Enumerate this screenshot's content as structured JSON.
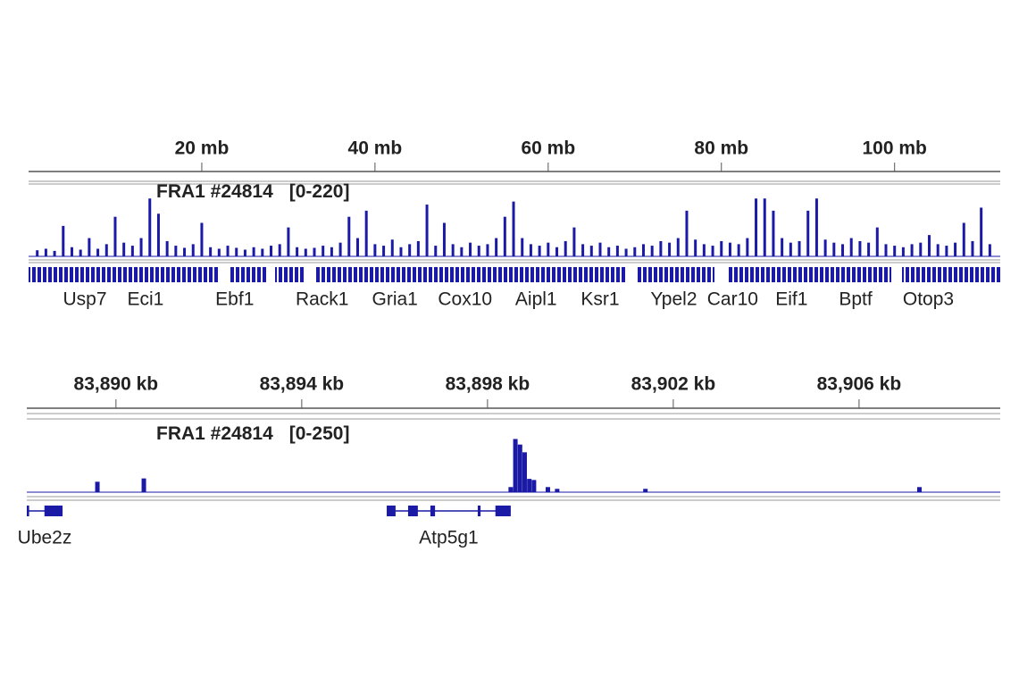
{
  "chart_data": [
    {
      "type": "genome-track",
      "xlim": [
        0,
        112.2
      ],
      "xticks": [
        {
          "value": 20,
          "label": "20 mb"
        },
        {
          "value": 40,
          "label": "40 mb"
        },
        {
          "value": 60,
          "label": "60 mb"
        },
        {
          "value": 80,
          "label": "80 mb"
        },
        {
          "value": 100,
          "label": "100 mb"
        }
      ],
      "track_name": "FRA1 #24814",
      "range_label": "[0-220]",
      "ylim": [
        0,
        220
      ],
      "series": [
        {
          "color": "#1a1aa6",
          "x": [
            1,
            2,
            3,
            4,
            5,
            6,
            7,
            8,
            9,
            10,
            11,
            12,
            13,
            14,
            15,
            16,
            17,
            18,
            19,
            20,
            21,
            22,
            23,
            24,
            25,
            26,
            27,
            28,
            29,
            30,
            31,
            32,
            33,
            34,
            35,
            36,
            37,
            38,
            39,
            40,
            41,
            42,
            43,
            44,
            45,
            46,
            47,
            48,
            49,
            50,
            51,
            52,
            53,
            54,
            55,
            56,
            57,
            58,
            59,
            60,
            61,
            62,
            63,
            64,
            65,
            66,
            67,
            68,
            69,
            70,
            71,
            72,
            73,
            74,
            75,
            76,
            77,
            78,
            79,
            80,
            81,
            82,
            83,
            84,
            85,
            86,
            87,
            88,
            89,
            90,
            91,
            92,
            93,
            94,
            95,
            96,
            97,
            98,
            99,
            100,
            101,
            102,
            103,
            104,
            105,
            106,
            107,
            108,
            109,
            110,
            111
          ],
          "values": [
            20,
            25,
            18,
            100,
            30,
            22,
            60,
            25,
            40,
            130,
            45,
            35,
            60,
            190,
            140,
            50,
            35,
            28,
            40,
            110,
            30,
            25,
            35,
            28,
            22,
            30,
            25,
            35,
            40,
            95,
            30,
            25,
            28,
            35,
            30,
            45,
            130,
            60,
            150,
            40,
            35,
            55,
            30,
            40,
            50,
            170,
            35,
            110,
            40,
            30,
            45,
            35,
            40,
            60,
            130,
            180,
            60,
            40,
            35,
            45,
            30,
            50,
            95,
            40,
            35,
            45,
            30,
            35,
            25,
            30,
            40,
            35,
            50,
            45,
            60,
            150,
            55,
            40,
            35,
            50,
            45,
            40,
            60,
            190,
            190,
            150,
            60,
            45,
            50,
            150,
            190,
            55,
            45,
            40,
            60,
            50,
            45,
            95,
            40,
            35,
            30,
            40,
            45,
            70,
            40,
            35,
            45,
            110,
            50,
            160,
            40
          ]
        }
      ],
      "genes": [
        {
          "name": "Usp7",
          "position": 6.5
        },
        {
          "name": "Eci1",
          "position": 13.5
        },
        {
          "name": "Ebf1",
          "position": 23.8
        },
        {
          "name": "Rack1",
          "position": 33.9
        },
        {
          "name": "Gria1",
          "position": 42.3
        },
        {
          "name": "Cox10",
          "position": 50.4
        },
        {
          "name": "Aipl1",
          "position": 58.6
        },
        {
          "name": "Ksr1",
          "position": 66
        },
        {
          "name": "Ypel2",
          "position": 74.5
        },
        {
          "name": "Car10",
          "position": 81.3
        },
        {
          "name": "Eif1",
          "position": 88.1
        },
        {
          "name": "Bptf",
          "position": 95.5
        },
        {
          "name": "Otop3",
          "position": 103.9
        }
      ]
    },
    {
      "type": "genome-track",
      "xlim": [
        83888.08,
        83909.04
      ],
      "xticks": [
        {
          "value": 83890,
          "label": "83,890 kb"
        },
        {
          "value": 83894,
          "label": "83,894 kb"
        },
        {
          "value": 83898,
          "label": "83,898 kb"
        },
        {
          "value": 83902,
          "label": "83,902 kb"
        },
        {
          "value": 83906,
          "label": "83,906 kb"
        }
      ],
      "track_name": "FRA1 #24814",
      "range_label": "[0-250]",
      "ylim": [
        0,
        250
      ],
      "series": [
        {
          "color": "#1a1aa6",
          "x": [
            83889.6,
            83890.6,
            83898.5,
            83898.6,
            83898.7,
            83898.8,
            83898.9,
            83899.0,
            83899.3,
            83899.5,
            83901.4,
            83907.3
          ],
          "values": [
            47,
            62,
            23,
            240,
            215,
            180,
            60,
            55,
            23,
            15,
            15,
            23
          ]
        }
      ],
      "genes": [
        {
          "name": "Ube2z",
          "start": 83888.08,
          "end": 83888.85,
          "exons": [
            [
              83888.08,
              83888.13
            ],
            [
              83888.46,
              83888.85
            ]
          ]
        },
        {
          "name": "Atp5g1",
          "start": 83895.83,
          "end": 83898.5,
          "exons": [
            [
              83895.83,
              83896.02
            ],
            [
              83896.29,
              83896.5
            ],
            [
              83896.77,
              83896.87
            ],
            [
              83897.79,
              83897.85
            ],
            [
              83898.17,
              83898.5
            ]
          ]
        }
      ]
    }
  ]
}
